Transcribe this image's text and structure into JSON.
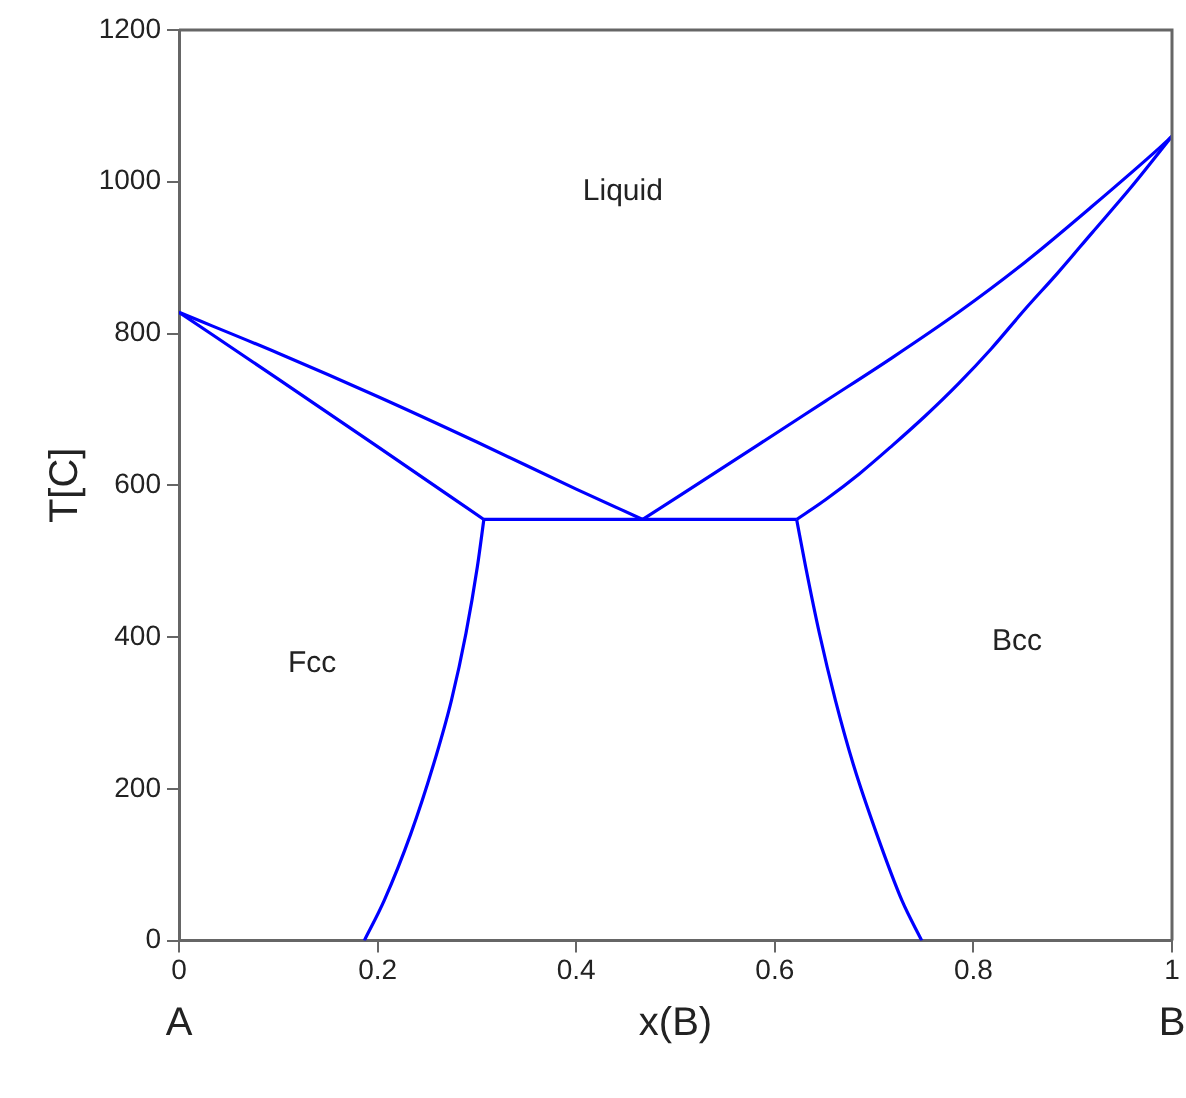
{
  "chart_data": {
    "type": "line",
    "xlabel": "x(B)",
    "ylabel": "T[C]",
    "xlim": [
      0,
      1
    ],
    "ylim": [
      0,
      1200
    ],
    "xticks": [
      0,
      0.2,
      0.4,
      0.6,
      0.8,
      1
    ],
    "yticks": [
      0,
      200,
      400,
      600,
      800,
      1000,
      1200
    ],
    "series": [
      {
        "color": "#0000ff",
        "x": [
          0,
          0.1,
          0.2,
          0.3,
          0.4,
          0.467
        ],
        "values": [
          828,
          774,
          717,
          657,
          595,
          555
        ]
      },
      {
        "color": "#0000ff",
        "x": [
          0,
          0.1,
          0.2,
          0.307
        ],
        "values": [
          828,
          740,
          651,
          555
        ]
      },
      {
        "color": "#0000ff",
        "x": [
          0.307,
          0.622
        ],
        "values": [
          555,
          555
        ]
      },
      {
        "color": "#0000ff",
        "x": [
          0.467,
          0.584,
          0.651,
          0.718,
          0.785,
          0.852,
          0.919,
          0.986,
          1
        ],
        "values": [
          555,
          654,
          711,
          768,
          828,
          894,
          967,
          1043,
          1060
        ]
      },
      {
        "color": "#0000ff",
        "x": [
          0.622,
          0.651,
          0.685,
          0.718,
          0.752,
          0.785,
          0.818,
          0.852,
          0.885,
          0.919,
          0.959,
          1
        ],
        "values": [
          555,
          581,
          615,
          652,
          692,
          734,
          780,
          832,
          880,
          932,
          993,
          1060
        ]
      },
      {
        "color": "#0000ff",
        "x": [
          0.1866,
          0.2067,
          0.2335,
          0.2556,
          0.2744,
          0.289,
          0.3005,
          0.307
        ],
        "values": [
          0,
          53,
          141,
          229,
          317,
          405,
          493,
          555
        ]
      },
      {
        "color": "#0000ff",
        "x": [
          0.622,
          0.631,
          0.6449,
          0.661,
          0.6798,
          0.7025,
          0.728,
          0.748
        ],
        "values": [
          555,
          493,
          405,
          317,
          229,
          141,
          53,
          0
        ]
      }
    ],
    "annotations": [
      "Liquid",
      "Fcc",
      "Bcc",
      "A",
      "B"
    ]
  }
}
